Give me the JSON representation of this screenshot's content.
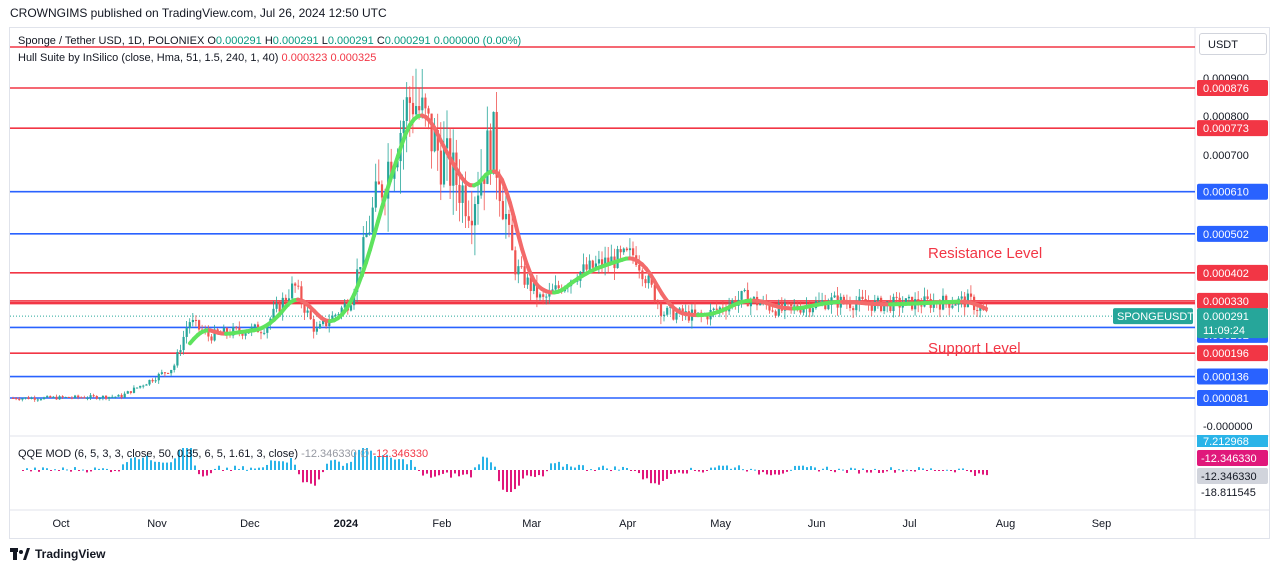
{
  "header": {
    "published_text": "CROWNGIMS published on TradingView.com, Jul 26, 2024 12:50 UTC"
  },
  "legend": {
    "symbol": "Sponge / Tether USD, 1D, POLONIEX",
    "ohlc": [
      {
        "label": "O",
        "value": "0.000291"
      },
      {
        "label": "H",
        "value": "0.000291"
      },
      {
        "label": "L",
        "value": "0.000291"
      },
      {
        "label": "C",
        "value": "0.000291"
      }
    ],
    "change": "0.000000 (0.00%)",
    "indicator": "Hull Suite by InSilico (close, Hma, 51, 1.5, 240, 1, 40)",
    "indicator_values": [
      "0.000323",
      "0.000325"
    ],
    "qqe": "QQE MOD (6, 5, 3, 3, close, 50, 0.35, 6, 5, 1.61, 3, close)",
    "qqe_value1": "-12.346330",
    "qqe_symbol": "∅",
    "qqe_value2": "-12.346330"
  },
  "currency_selector": "USDT",
  "footer": {
    "brand": "TradingView"
  },
  "colors": {
    "red_line": "#f23645",
    "blue_line": "#2962ff",
    "bull": "#26a69a",
    "bear": "#ef5350",
    "hull_up": "#5ee35e",
    "hull_down": "#f36a6a",
    "qqe_pos": "#2ab4e8",
    "qqe_neg": "#e0187b"
  },
  "chart_data": {
    "type": "candlestick",
    "symbol": "SPONGEUSDT",
    "timeframe": "1D",
    "ylim": [
      7e-05,
      0.00098
    ],
    "x_tick_labels": [
      "Oct",
      "Nov",
      "Dec",
      "2024",
      "Feb",
      "Mar",
      "Apr",
      "May",
      "Jun",
      "Jul",
      "Aug",
      "Sep"
    ],
    "y_tick_labels": [
      "0.000900",
      "0.000800",
      "0.000700",
      "-0.000000"
    ],
    "annotations": [
      {
        "text": "Resistance Level",
        "price": 0.000402
      },
      {
        "text": "Support Level",
        "price": 0.000262
      }
    ],
    "levels": [
      {
        "price": 0.000876,
        "label": "0.000876",
        "color": "red",
        "style": "badge"
      },
      {
        "price": 0.000773,
        "label": "0.000773",
        "color": "red",
        "style": "badge"
      },
      {
        "price": 0.00061,
        "label": "0.000610",
        "color": "blue",
        "style": "badge"
      },
      {
        "price": 0.000502,
        "label": "0.000502",
        "color": "blue",
        "style": "badge"
      },
      {
        "price": 0.000402,
        "label": "0.000402",
        "color": "red",
        "style": "badge"
      },
      {
        "price": 0.00033,
        "label": "0.000330",
        "color": "red",
        "style": "badge"
      },
      {
        "price": 0.000325,
        "label": "0.000325",
        "color": "red",
        "style": "badge"
      },
      {
        "price": 0.000323,
        "label": "0.000323",
        "color": "red",
        "style": "badge"
      },
      {
        "price": 0.000262,
        "label": "0.000262",
        "color": "blue",
        "style": "badge"
      },
      {
        "price": 0.000196,
        "label": "0.000196",
        "color": "red",
        "style": "badge"
      },
      {
        "price": 0.000136,
        "label": "0.000136",
        "color": "blue",
        "style": "badge"
      },
      {
        "price": 8.1e-05,
        "label": "0.000081",
        "color": "blue",
        "style": "badge"
      }
    ],
    "current_price": {
      "symbol_label": "SPONGEUSDT",
      "price_label": "0.000291",
      "countdown": "11:09:24",
      "price": 0.000291
    },
    "qqe_axis_labels": [
      {
        "text": "7.212968",
        "style": "blue-badge"
      },
      {
        "text": "-12.346330",
        "style": "red-badge"
      },
      {
        "text": "-12.346330",
        "style": "grey-badge"
      },
      {
        "text": "-18.811545",
        "style": "plain"
      }
    ],
    "price_path": [
      {
        "date": "2023-09-25",
        "price": 8.1e-05
      },
      {
        "date": "2023-10-20",
        "price": 8.5e-05
      },
      {
        "date": "2023-10-28",
        "price": 0.00012
      },
      {
        "date": "2023-11-06",
        "price": 0.00016
      },
      {
        "date": "2023-11-11",
        "price": 0.00028
      },
      {
        "date": "2023-11-17",
        "price": 0.00024
      },
      {
        "date": "2023-11-25",
        "price": 0.00025
      },
      {
        "date": "2023-12-05",
        "price": 0.00026
      },
      {
        "date": "2023-12-15",
        "price": 0.00037
      },
      {
        "date": "2023-12-22",
        "price": 0.00025
      },
      {
        "date": "2024-01-02",
        "price": 0.00033
      },
      {
        "date": "2024-01-08",
        "price": 0.00052
      },
      {
        "date": "2024-01-15",
        "price": 0.0007
      },
      {
        "date": "2024-01-22",
        "price": 0.00086
      },
      {
        "date": "2024-01-30",
        "price": 0.00072
      },
      {
        "date": "2024-02-10",
        "price": 0.00058
      },
      {
        "date": "2024-02-17",
        "price": 0.00075
      },
      {
        "date": "2024-02-24",
        "price": 0.00042
      },
      {
        "date": "2024-03-04",
        "price": 0.00033
      },
      {
        "date": "2024-03-15",
        "price": 0.0004
      },
      {
        "date": "2024-03-25",
        "price": 0.00043
      },
      {
        "date": "2024-04-03",
        "price": 0.00045
      },
      {
        "date": "2024-04-12",
        "price": 0.0003
      },
      {
        "date": "2024-04-25",
        "price": 0.00029
      },
      {
        "date": "2024-05-08",
        "price": 0.00034
      },
      {
        "date": "2024-05-20",
        "price": 0.000305
      },
      {
        "date": "2024-06-05",
        "price": 0.00033
      },
      {
        "date": "2024-06-20",
        "price": 0.00032
      },
      {
        "date": "2024-07-05",
        "price": 0.000325
      },
      {
        "date": "2024-07-20",
        "price": 0.00033
      },
      {
        "date": "2024-07-26",
        "price": 0.000291
      }
    ]
  }
}
